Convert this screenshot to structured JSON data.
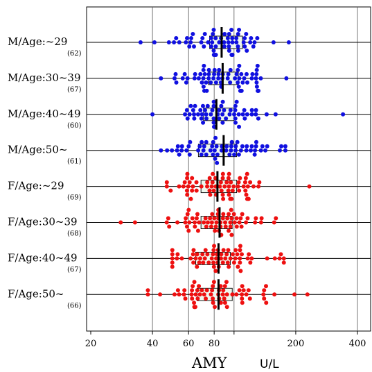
{
  "chart_data": {
    "type": "scatter",
    "subtype": "horizontal beeswarm dot plot with box plots, log x-axis",
    "x_scale": "log",
    "xlim": [
      18,
      480
    ],
    "x_ticks": [
      20,
      40,
      60,
      80,
      100,
      200,
      400
    ],
    "x_tick_labels": [
      "20",
      "40",
      "60",
      "80",
      "",
      "200",
      "400"
    ],
    "xlabel": "AMY",
    "xunit": "U/L",
    "grid": "vertical lines at ticks",
    "groups": [
      {
        "label": "M/Age:~29",
        "n_label": "(62)",
        "color": "#1010e0",
        "median": 87,
        "q1": 76,
        "q3": 110,
        "whisker_low": 46,
        "whisker_high": 185,
        "min": 35,
        "max": 185,
        "n": 62
      },
      {
        "label": "M/Age:30~39",
        "n_label": "(67)",
        "color": "#1010e0",
        "median": 88,
        "q1": 75,
        "q3": 105,
        "whisker_low": 44,
        "whisker_high": 180,
        "min": 44,
        "max": 180,
        "n": 67
      },
      {
        "label": "M/Age:40~49",
        "n_label": "(60)",
        "color": "#1010e0",
        "median": 82,
        "q1": 71,
        "q3": 100,
        "whisker_low": 52,
        "whisker_high": 200,
        "min": 40,
        "max": 340,
        "n": 60
      },
      {
        "label": "M/Age:50~",
        "n_label": "(61)",
        "color": "#1010e0",
        "median": 89,
        "q1": 67,
        "q3": 103,
        "whisker_low": 44,
        "whisker_high": 178,
        "min": 44,
        "max": 178,
        "n": 61
      },
      {
        "label": "F/Age:~29",
        "n_label": "(69)",
        "color": "#ee1010",
        "median": 83,
        "q1": 69,
        "q3": 103,
        "whisker_low": 52,
        "whisker_high": 185,
        "min": 47,
        "max": 233,
        "n": 69
      },
      {
        "label": "F/Age:30~39",
        "n_label": "(68)",
        "color": "#ee1010",
        "median": 85,
        "q1": 69,
        "q3": 98,
        "whisker_low": 50,
        "whisker_high": 160,
        "min": 28,
        "max": 160,
        "n": 68
      },
      {
        "label": "F/Age:40~49",
        "n_label": "(67)",
        "color": "#ee1010",
        "median": 84,
        "q1": 65,
        "q3": 96,
        "whisker_low": 50,
        "whisker_high": 175,
        "min": 50,
        "max": 175,
        "n": 67
      },
      {
        "label": "F/Age:50~",
        "n_label": "(66)",
        "color": "#ee1010",
        "median": 84,
        "q1": 66,
        "q3": 98,
        "whisker_low": 42,
        "whisker_high": 160,
        "min": 38,
        "max": 228,
        "n": 66
      }
    ]
  }
}
